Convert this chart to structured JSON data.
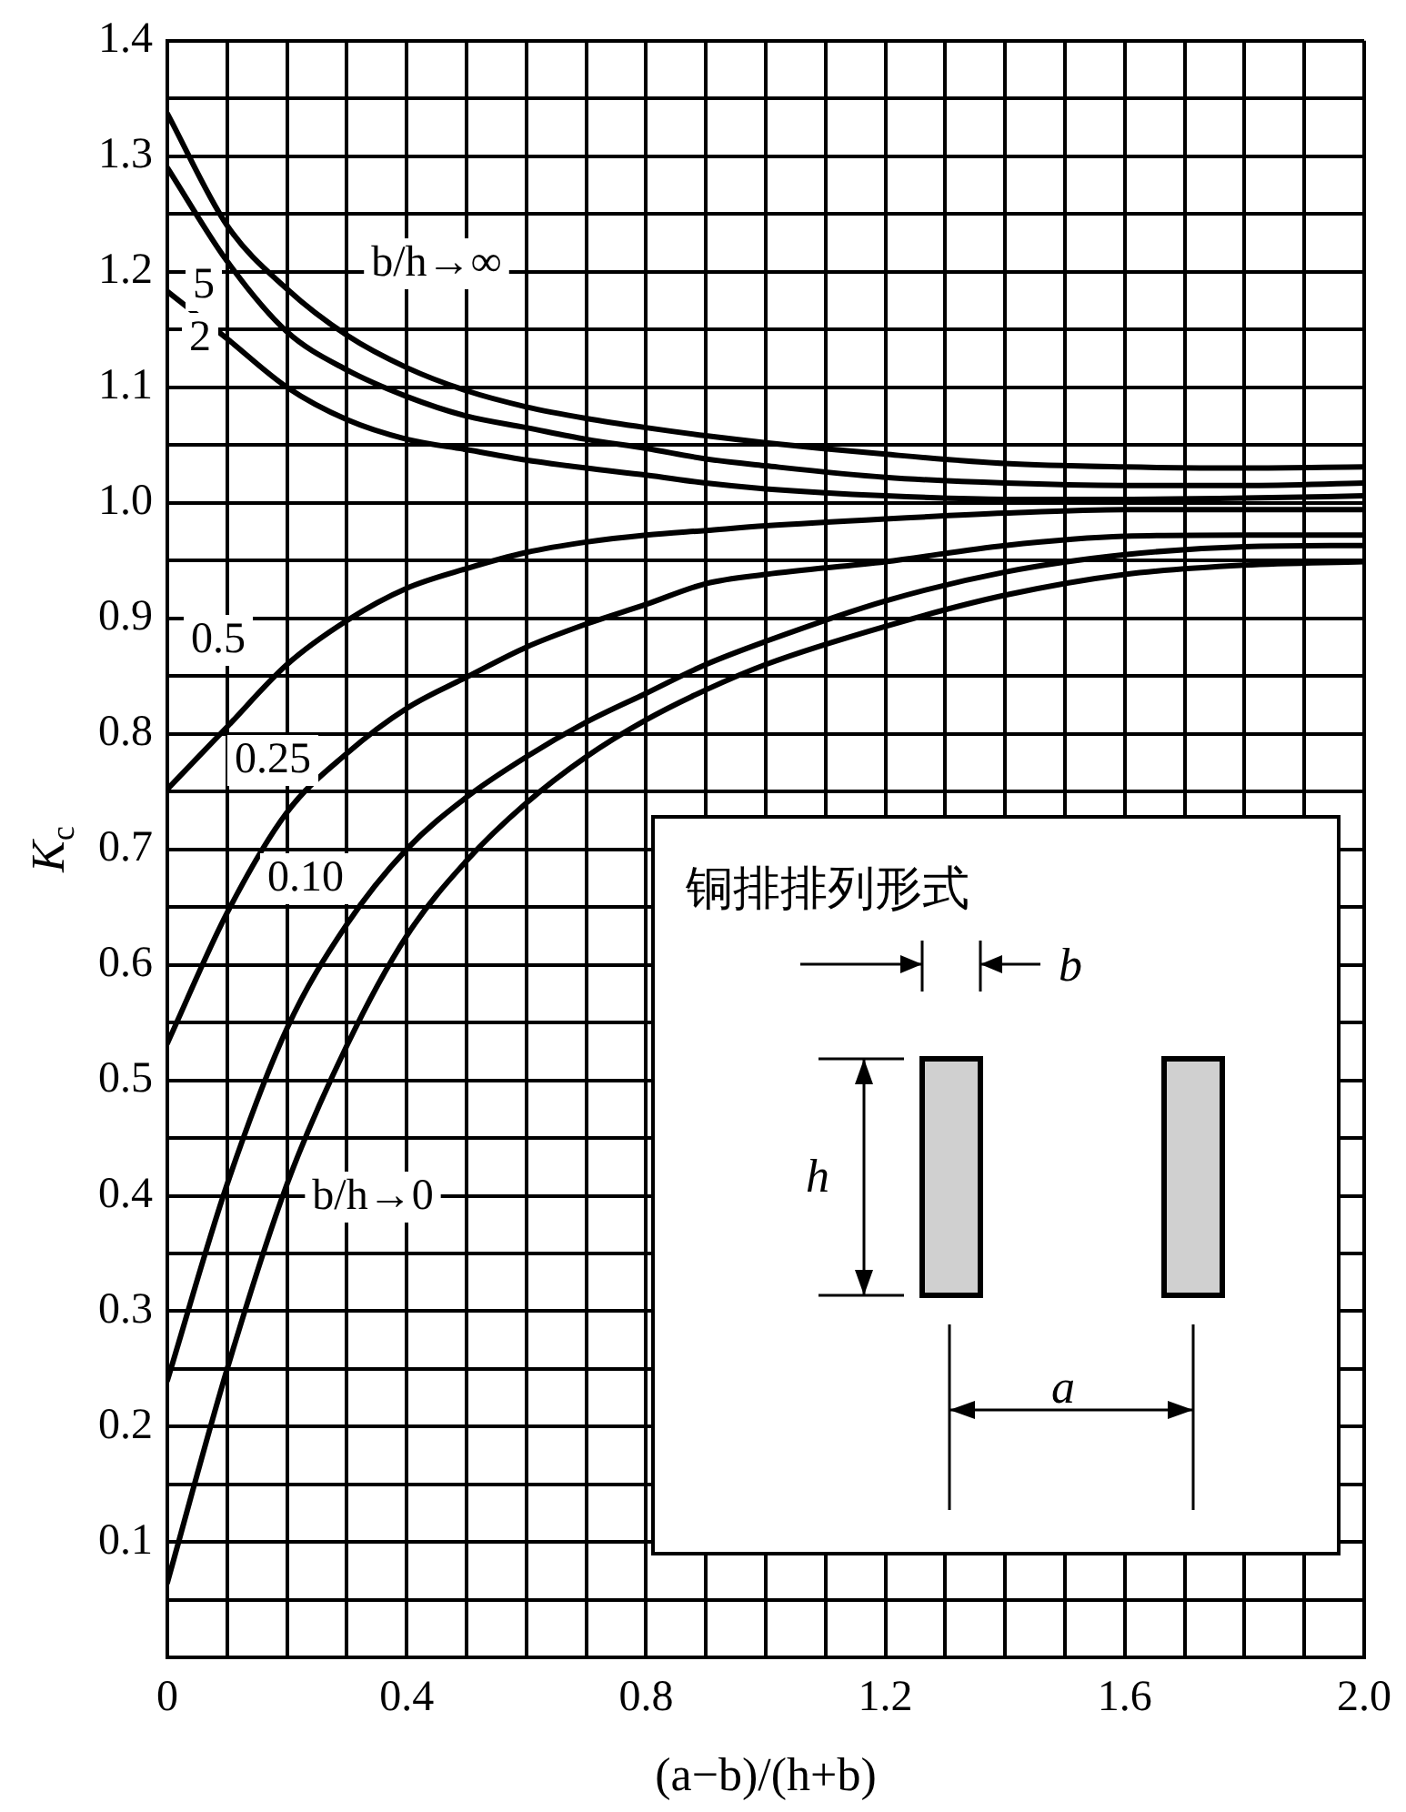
{
  "chart_data": {
    "type": "line",
    "xlabel": "(a−b)/(h+b)",
    "ylabel": "K$_{c}$",
    "x": [
      0,
      0.1,
      0.2,
      0.3,
      0.4,
      0.5,
      0.6,
      0.7,
      0.8,
      0.9,
      1.0,
      1.2,
      1.4,
      1.6,
      1.8,
      2.0
    ],
    "series": [
      {
        "color": "#000000",
        "values": [
          1.337,
          1.24,
          1.185,
          1.145,
          1.117,
          1.097,
          1.083,
          1.073,
          1.065,
          1.058,
          1.052,
          1.042,
          1.034,
          1.031,
          1.03,
          1.031
        ]
      },
      {
        "color": "#000000",
        "values": [
          1.29,
          1.209,
          1.148,
          1.115,
          1.092,
          1.075,
          1.065,
          1.055,
          1.047,
          1.038,
          1.032,
          1.022,
          1.017,
          1.015,
          1.015,
          1.017
        ]
      },
      {
        "color": "#000000",
        "values": [
          1.183,
          1.142,
          1.1,
          1.072,
          1.055,
          1.046,
          1.037,
          1.03,
          1.024,
          1.017,
          1.012,
          1.006,
          1.003,
          1.003,
          1.004,
          1.006
        ]
      },
      {
        "color": "#000000",
        "values": [
          0.752,
          0.806,
          0.86,
          0.898,
          0.926,
          0.943,
          0.957,
          0.966,
          0.972,
          0.976,
          0.98,
          0.986,
          0.991,
          0.994,
          0.994,
          0.994
        ]
      },
      {
        "color": "#000000",
        "values": [
          0.532,
          0.645,
          0.732,
          0.783,
          0.822,
          0.849,
          0.875,
          0.895,
          0.912,
          0.93,
          0.938,
          0.949,
          0.963,
          0.971,
          0.972,
          0.972
        ]
      },
      {
        "color": "#000000",
        "values": [
          0.24,
          0.41,
          0.545,
          0.635,
          0.7,
          0.745,
          0.78,
          0.81,
          0.835,
          0.86,
          0.88,
          0.915,
          0.94,
          0.955,
          0.962,
          0.963
        ]
      },
      {
        "color": "#000000",
        "values": [
          0.065,
          0.25,
          0.41,
          0.53,
          0.625,
          0.69,
          0.74,
          0.78,
          0.812,
          0.838,
          0.86,
          0.893,
          0.92,
          0.938,
          0.946,
          0.949
        ]
      }
    ],
    "xlim": [
      0,
      2.0
    ],
    "xticks": [
      0,
      {
        "value": 0.1,
        "label": null
      },
      {
        "value": 0.2,
        "label": null
      },
      {
        "value": 0.3,
        "label": null
      },
      0.4,
      {
        "value": 0.5,
        "label": null
      },
      {
        "value": 0.6,
        "label": null
      },
      {
        "value": 0.7,
        "label": null
      },
      0.8,
      {
        "value": 0.9,
        "label": null
      },
      {
        "value": 1.0,
        "label": null
      },
      {
        "value": 1.1,
        "label": null
      },
      1.2,
      {
        "value": 1.3,
        "label": null
      },
      {
        "value": 1.4,
        "label": null
      },
      {
        "value": 1.5,
        "label": null
      },
      1.6,
      {
        "value": 1.7,
        "label": null
      },
      {
        "value": 1.8,
        "label": null
      },
      {
        "value": 1.9,
        "label": null
      },
      {
        "value": 2.0,
        "label": "2.0"
      }
    ],
    "ylim": [
      0,
      1.4
    ],
    "yticks": [
      {
        "value": 0,
        "label": null
      },
      {
        "value": 0.05,
        "label": null
      },
      0.1,
      {
        "value": 0.15,
        "label": null
      },
      0.2,
      {
        "value": 0.25,
        "label": null
      },
      0.3,
      {
        "value": 0.35,
        "label": null
      },
      0.4,
      {
        "value": 0.45,
        "label": null
      },
      0.5,
      {
        "value": 0.55,
        "label": null
      },
      0.6,
      {
        "value": 0.65,
        "label": null
      },
      0.7,
      {
        "value": 0.75,
        "label": null
      },
      0.8,
      {
        "value": 0.85,
        "label": null
      },
      0.9,
      {
        "value": 0.95,
        "label": null
      },
      {
        "value": 1.0,
        "label": "1.0"
      },
      {
        "value": 1.05,
        "label": null
      },
      1.1,
      {
        "value": 1.15,
        "label": null
      },
      1.2,
      {
        "value": 1.25,
        "label": null
      },
      1.3,
      {
        "value": 1.35,
        "label": null
      },
      1.4
    ],
    "grid": true,
    "legend": false,
    "marker": "none",
    "line_style": "solid",
    "annotations": [
      "铜排排列形式",
      "b",
      "h",
      "a",
      "b/h→∞",
      "5",
      "2",
      "0.5",
      "0.25",
      "0.10",
      "b/h→0"
    ]
  }
}
